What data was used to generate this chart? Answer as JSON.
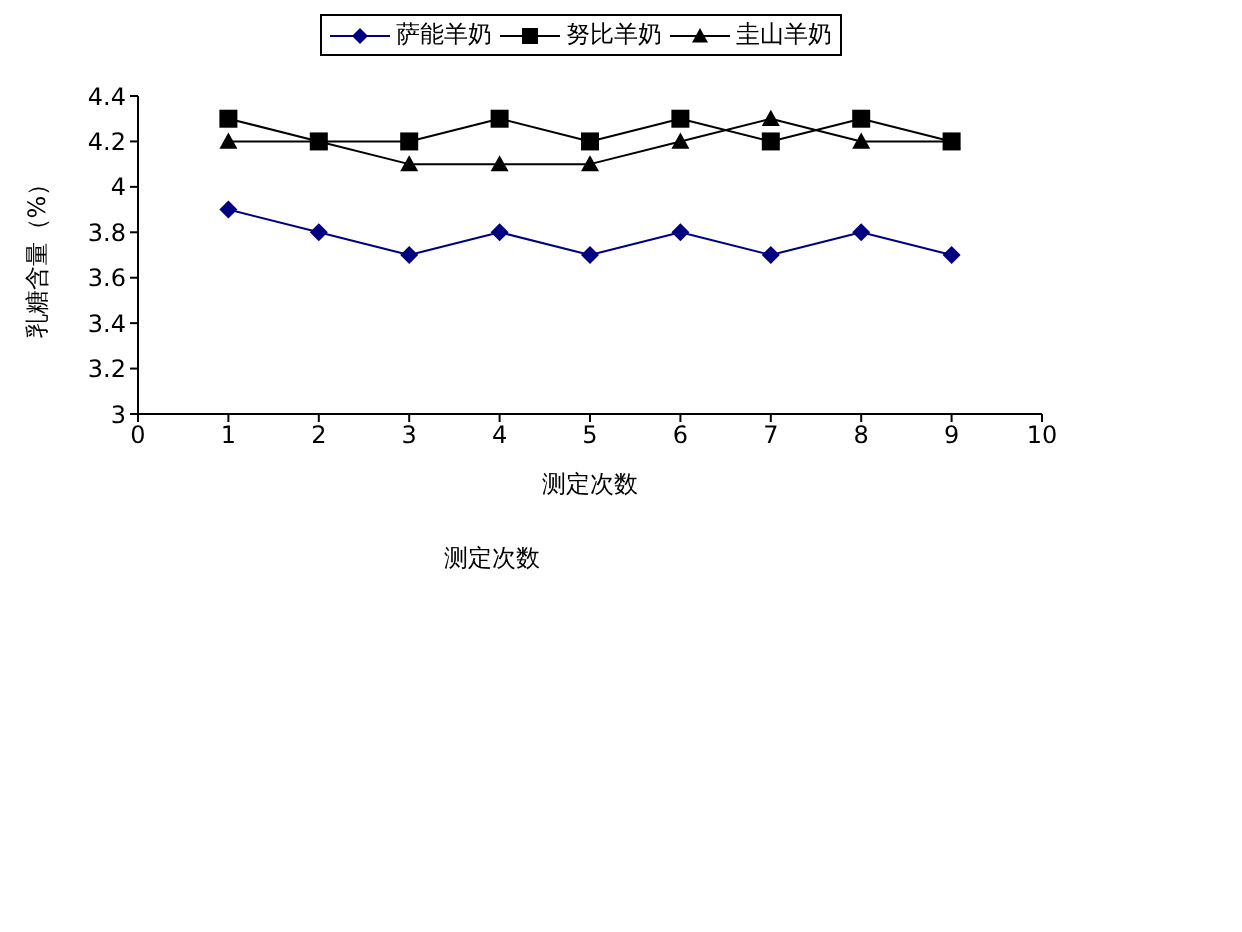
{
  "chart_data": {
    "type": "line",
    "xlabel": "测定次数",
    "ylabel": "乳糖含量（%）",
    "annotations": [
      "测定次数"
    ],
    "x": [
      1,
      2,
      3,
      4,
      5,
      6,
      7,
      8,
      9
    ],
    "xlim": [
      0,
      10
    ],
    "xticks": [
      0,
      1,
      2,
      3,
      4,
      5,
      6,
      7,
      8,
      9,
      10
    ],
    "ylim": [
      3,
      4.4
    ],
    "yticks": [
      3,
      3.2,
      3.4,
      3.6,
      3.8,
      4,
      4.2,
      4.4
    ],
    "grid": false,
    "legend": "top",
    "line_style": "solid",
    "series": [
      {
        "name": "萨能羊奶",
        "color": "#000080",
        "marker": "diamond",
        "values": [
          3.9,
          3.8,
          3.7,
          3.8,
          3.7,
          3.8,
          3.7,
          3.8,
          3.7
        ]
      },
      {
        "name": "努比羊奶",
        "color": "#000000",
        "marker": "square",
        "values": [
          4.3,
          4.2,
          4.2,
          4.3,
          4.2,
          4.3,
          4.2,
          4.3,
          4.2
        ]
      },
      {
        "name": "圭山羊奶",
        "color": "#000000",
        "marker": "triangle",
        "values": [
          4.2,
          4.2,
          4.1,
          4.1,
          4.1,
          4.2,
          4.3,
          4.2,
          4.2
        ]
      }
    ]
  }
}
